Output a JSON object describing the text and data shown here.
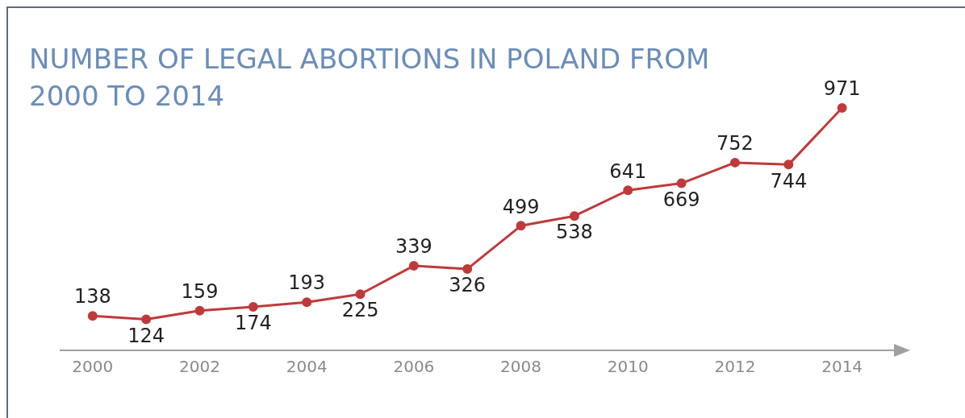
{
  "chart_data": {
    "type": "line",
    "title": "NUMBER OF LEGAL ABORTIONS IN POLAND FROM 2000 TO 2014",
    "x": [
      2000,
      2001,
      2002,
      2003,
      2004,
      2005,
      2006,
      2007,
      2008,
      2009,
      2010,
      2011,
      2012,
      2013,
      2014
    ],
    "series": [
      {
        "color": "#c0393b",
        "values": [
          138,
          124,
          159,
          174,
          193,
          225,
          339,
          326,
          499,
          538,
          641,
          669,
          752,
          744,
          971
        ]
      }
    ],
    "xlim": [
      1999.4,
      2015
    ],
    "xticks": [
      2000,
      2002,
      2004,
      2006,
      2008,
      2010,
      2012,
      2014
    ],
    "tick_labels": "x",
    "data_labels": true,
    "grid": false,
    "legend": false,
    "marker": "circle",
    "line_style": "solid"
  }
}
